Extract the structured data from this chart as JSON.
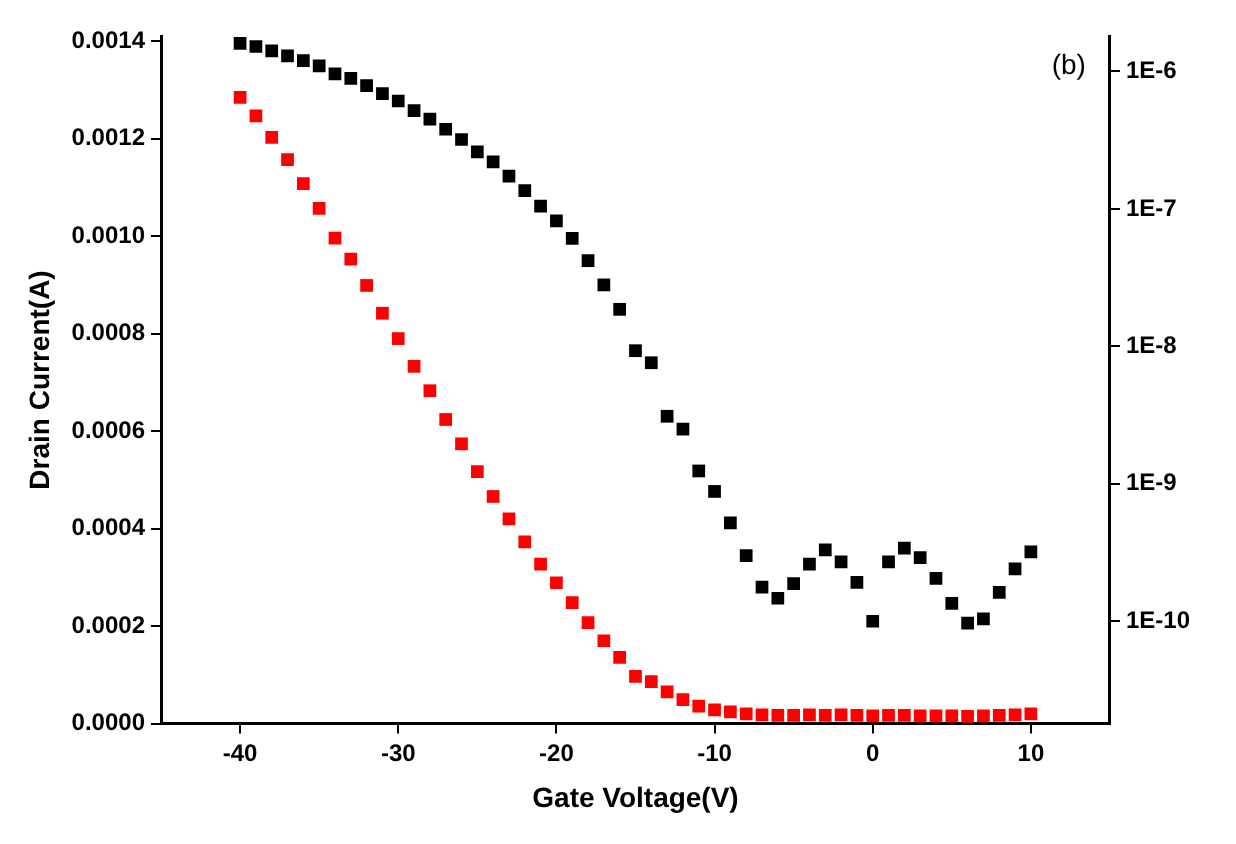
{
  "chart_data": {
    "type": "scatter",
    "xlabel": "Gate Voltage(V)",
    "ylabel": "Drain Current(A)",
    "annotations": [
      "(b)"
    ],
    "x": [
      -40,
      -39,
      -38,
      -37,
      -36,
      -35,
      -34,
      -33,
      -32,
      -31,
      -30,
      -29,
      -28,
      -27,
      -26,
      -25,
      -24,
      -23,
      -22,
      -21,
      -20,
      -19,
      -18,
      -17,
      -16,
      -15,
      -14,
      -13,
      -12,
      -11,
      -10,
      -9,
      -8,
      -7,
      -6,
      -5,
      -4,
      -3,
      -2,
      -1,
      0,
      1,
      2,
      3,
      4,
      5,
      6,
      7,
      8,
      9,
      10
    ],
    "series": [
      {
        "color": "#ff0000",
        "values": [
          0.001285,
          0.001247,
          0.001203,
          0.001157,
          0.001108,
          0.001057,
          0.000996,
          0.000953,
          0.000899,
          0.000842,
          0.00079,
          0.000733,
          0.000683,
          0.000624,
          0.000574,
          0.000517,
          0.000466,
          0.00042,
          0.000373,
          0.000327,
          0.000289,
          0.000248,
          0.000207,
          0.00017,
          0.000136,
          9.7e-05,
          8.6e-05,
          6.5e-05,
          4.9e-05,
          3.6e-05,
          2.8e-05,
          2.4e-05,
          2e-05,
          1.8e-05,
          1.7e-05,
          1.7e-05,
          1.8e-05,
          1.7e-05,
          1.8e-05,
          1.7e-05,
          1.6e-05,
          1.7e-05,
          1.7e-05,
          1.6e-05,
          1.6e-05,
          1.6e-05,
          1.5e-05,
          1.6e-05,
          1.7e-05,
          1.8e-05,
          2e-05
        ]
      },
      {
        "color": "#000000",
        "axis": "y2",
        "values": [
          1.6e-06,
          1.52e-06,
          1.41e-06,
          1.3e-06,
          1.2e-06,
          1.1e-06,
          9.6e-07,
          8.9e-07,
          7.9e-07,
          6.9e-07,
          6.1e-07,
          5.2e-07,
          4.5e-07,
          3.8e-07,
          3.2e-07,
          2.6e-07,
          2.2e-07,
          1.73e-07,
          1.36e-07,
          1.05e-07,
          8.2e-08,
          6.1e-08,
          4.2e-08,
          2.8e-08,
          1.86e-08,
          9.3e-09,
          7.6e-09,
          3.1e-09,
          2.5e-09,
          1.24e-09,
          8.8e-10,
          5.2e-10,
          3e-10,
          1.77e-10,
          1.47e-10,
          1.88e-10,
          2.6e-10,
          3.3e-10,
          2.7e-10,
          1.92e-10,
          1e-10,
          2.7e-10,
          3.4e-10,
          2.9e-10,
          2.05e-10,
          1.35e-10,
          9.7e-11,
          1.04e-10,
          1.62e-10,
          2.4e-10,
          3.2e-10
        ]
      }
    ],
    "xlim": [
      -45,
      15
    ],
    "xticks": [
      -40,
      -30,
      -20,
      -10,
      0,
      10
    ],
    "ylim": [
      0,
      0.00141
    ],
    "yticks": [
      {
        "value": 0,
        "label": "0.0000"
      },
      {
        "value": 0.0002,
        "label": "0.0002"
      },
      {
        "value": 0.0004,
        "label": "0.0004"
      },
      {
        "value": 0.0006,
        "label": "0.0006"
      },
      {
        "value": 0.0008,
        "label": "0.0008"
      },
      {
        "value": 0.001,
        "label": "0.0010"
      },
      {
        "value": 0.0012,
        "label": "0.0012"
      },
      {
        "value": 0.0014,
        "label": "0.0014"
      }
    ],
    "y2lim": [
      1.8e-11,
      1.8e-06
    ],
    "y2ticks": [
      {
        "value": 1e-10,
        "label": "1E-10"
      },
      {
        "value": 1e-09,
        "label": "1E-9"
      },
      {
        "value": 1e-08,
        "label": "1E-8"
      },
      {
        "value": 1e-07,
        "label": "1E-7"
      },
      {
        "value": 1e-06,
        "label": "1E-6"
      }
    ],
    "log": "y2",
    "grid": false,
    "marker": "square"
  }
}
